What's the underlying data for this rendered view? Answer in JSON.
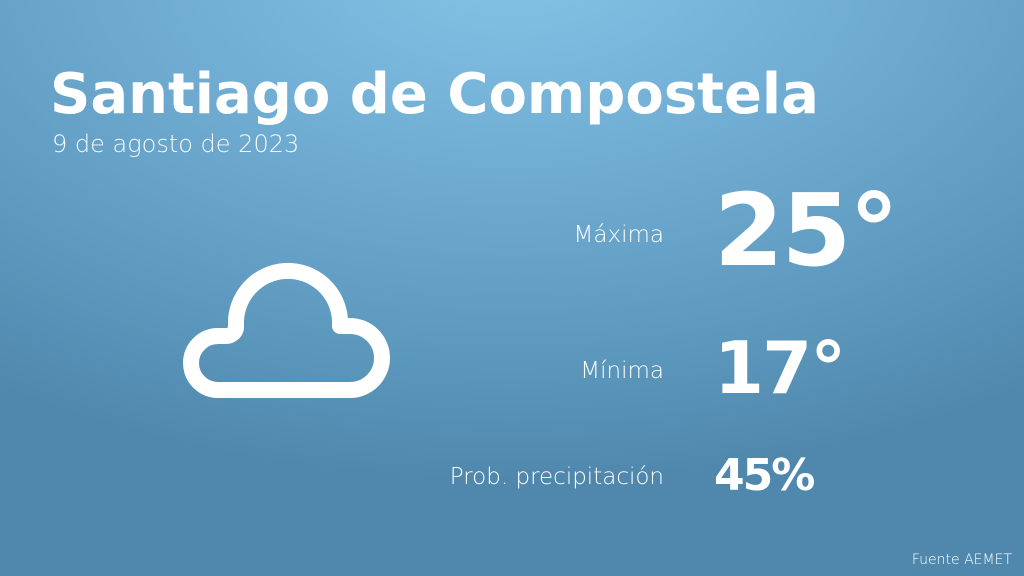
{
  "header": {
    "city": "Santiago de Compostela",
    "date": "9 de agosto de 2023"
  },
  "weather": {
    "icon": "cloud-icon",
    "max_label": "Máxima",
    "max_value": "25°",
    "min_label": "Mínima",
    "min_value": "17°",
    "prob_label": "Prob. precipitación",
    "prob_value": "45%"
  },
  "footer": {
    "source": "Fuente AEMET"
  },
  "colors": {
    "background_top": "#84c3e6",
    "background_bottom": "#5088ad",
    "text": "#ffffff"
  }
}
